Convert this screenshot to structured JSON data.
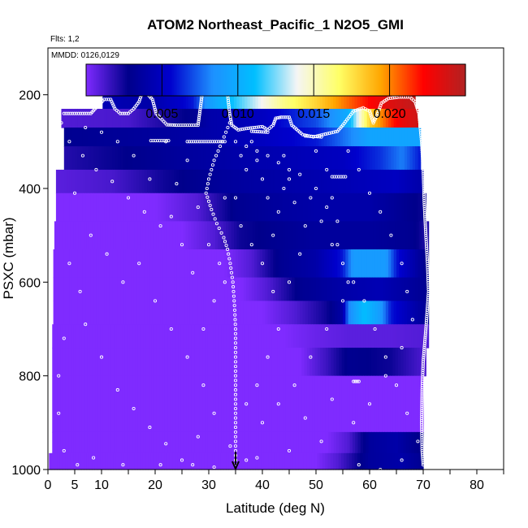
{
  "chart_data": {
    "type": "heatmap",
    "title": "ATOM2 Northeast_Pacific_1 N2O5_GMI",
    "flights_note": "Flts: 1,2",
    "date_note": "MMDD: 0126,0129",
    "xlabel": "Latitude (deg N)",
    "ylabel": "PSXC (mbar)",
    "xlim": [
      0,
      85
    ],
    "ylim": [
      1000,
      100
    ],
    "x_ticks": [
      0,
      5,
      10,
      20,
      30,
      40,
      50,
      60,
      70,
      80
    ],
    "x_minor_ticks": [
      15,
      25,
      35,
      45,
      55,
      65,
      75,
      85
    ],
    "y_ticks": [
      200,
      400,
      600,
      800,
      1000
    ],
    "colorbar": {
      "min": 0,
      "max": 0.025,
      "ticks": [
        "0.005",
        "0.010",
        "0.015",
        "0.020"
      ],
      "tick_values": [
        0.005,
        0.01,
        0.015,
        0.02
      ],
      "colors": [
        "#7f2bff",
        "#00008b",
        "#0000cd",
        "#1e90ff",
        "#00bfff",
        "#f5f5f5",
        "#ffff66",
        "#ffa500",
        "#ff0000",
        "#b22222"
      ]
    },
    "arrow_latitude": 35,
    "grid": false,
    "pressure_bands": [
      {
        "p_top": 170,
        "p_bot": 230,
        "x_start": 10.2,
        "x_end": 68.5,
        "stops": [
          [
            10.2,
            0.0045
          ],
          [
            19,
            0.004
          ],
          [
            27,
            0.006
          ],
          [
            30,
            0.009
          ],
          [
            37,
            0.0125
          ],
          [
            44,
            0.016
          ],
          [
            50,
            0.018
          ],
          [
            56,
            0.0205
          ],
          [
            62,
            0.023
          ],
          [
            68.5,
            0.0245
          ]
        ]
      },
      {
        "p_top": 230,
        "p_bot": 270,
        "x_start": 2.5,
        "x_end": 69,
        "stops": [
          [
            2.5,
            0.001
          ],
          [
            15,
            0.0012
          ],
          [
            27,
            0.003
          ],
          [
            30,
            0.004
          ],
          [
            40,
            0.005
          ],
          [
            50,
            0.007
          ],
          [
            56,
            0.01
          ],
          [
            60,
            0.018
          ],
          [
            64,
            0.0215
          ],
          [
            66,
            0.023
          ],
          [
            69,
            0.024
          ]
        ]
      },
      {
        "p_top": 270,
        "p_bot": 310,
        "x_start": 3,
        "x_end": 69.5,
        "stops": [
          [
            3,
            0.003
          ],
          [
            20,
            0.0035
          ],
          [
            30,
            0.004
          ],
          [
            40,
            0.005
          ],
          [
            50,
            0.006
          ],
          [
            56,
            0.008
          ],
          [
            60,
            0.0095
          ],
          [
            69.5,
            0.0095
          ]
        ]
      },
      {
        "p_top": 310,
        "p_bot": 360,
        "x_start": 3,
        "x_end": 69.5,
        "stops": [
          [
            3,
            0.002
          ],
          [
            15,
            0.0028
          ],
          [
            25,
            0.0035
          ],
          [
            35,
            0.004
          ],
          [
            45,
            0.0045
          ],
          [
            55,
            0.005
          ],
          [
            62,
            0.0065
          ],
          [
            66,
            0.008
          ],
          [
            69.5,
            0.006
          ]
        ]
      },
      {
        "p_top": 360,
        "p_bot": 410,
        "x_start": 1.5,
        "x_end": 70,
        "stops": [
          [
            1.5,
            0.0008
          ],
          [
            12,
            0.0012
          ],
          [
            22,
            0.0025
          ],
          [
            33,
            0.0035
          ],
          [
            45,
            0.004
          ],
          [
            55,
            0.0045
          ],
          [
            65,
            0.005
          ],
          [
            70,
            0.004
          ]
        ]
      },
      {
        "p_top": 410,
        "p_bot": 470,
        "x_start": 1.5,
        "x_end": 70.5,
        "stops": [
          [
            1.5,
            0.0
          ],
          [
            20,
            0.0
          ],
          [
            28,
            0.001
          ],
          [
            35,
            0.003
          ],
          [
            42,
            0.0035
          ],
          [
            50,
            0.004
          ],
          [
            60,
            0.004
          ],
          [
            70.5,
            0.0025
          ]
        ]
      },
      {
        "p_top": 470,
        "p_bot": 530,
        "x_start": 1.2,
        "x_end": 71,
        "stops": [
          [
            1.2,
            0.0
          ],
          [
            25,
            0.0
          ],
          [
            31,
            0.001
          ],
          [
            36,
            0.0025
          ],
          [
            42,
            0.003
          ],
          [
            50,
            0.0035
          ],
          [
            60,
            0.0035
          ],
          [
            68,
            0.003
          ],
          [
            71,
            0.002
          ]
        ]
      },
      {
        "p_top": 530,
        "p_bot": 590,
        "x_start": 1,
        "x_end": 71,
        "stops": [
          [
            1,
            0.0
          ],
          [
            33,
            0.0
          ],
          [
            38,
            0.001
          ],
          [
            43,
            0.003
          ],
          [
            50,
            0.004
          ],
          [
            55,
            0.006
          ],
          [
            57,
            0.009
          ],
          [
            63,
            0.009
          ],
          [
            65,
            0.006
          ],
          [
            71,
            0.0025
          ]
        ]
      },
      {
        "p_top": 590,
        "p_bot": 640,
        "x_start": 1,
        "x_end": 71,
        "stops": [
          [
            1,
            0.0
          ],
          [
            36,
            0.0
          ],
          [
            41,
            0.001
          ],
          [
            47,
            0.003
          ],
          [
            55,
            0.004
          ],
          [
            62,
            0.0045
          ],
          [
            71,
            0.003
          ]
        ]
      },
      {
        "p_top": 640,
        "p_bot": 690,
        "x_start": 1,
        "x_end": 71,
        "stops": [
          [
            1,
            0.0
          ],
          [
            40,
            0.0
          ],
          [
            46,
            0.001
          ],
          [
            52,
            0.0025
          ],
          [
            55,
            0.004
          ],
          [
            56,
            0.008
          ],
          [
            59,
            0.011
          ],
          [
            62,
            0.009
          ],
          [
            64,
            0.006
          ],
          [
            71,
            0.003
          ]
        ]
      },
      {
        "p_top": 690,
        "p_bot": 740,
        "x_start": 0.8,
        "x_end": 71,
        "stops": [
          [
            0.8,
            0.0
          ],
          [
            44,
            0.0
          ],
          [
            50,
            0.0005
          ],
          [
            56,
            0.0008
          ],
          [
            64,
            0.0008
          ],
          [
            71,
            0.001
          ]
        ]
      },
      {
        "p_top": 740,
        "p_bot": 800,
        "x_start": 0.8,
        "x_end": 70.5,
        "stops": [
          [
            0.8,
            0.0
          ],
          [
            47,
            0.0
          ],
          [
            52,
            0.0015
          ],
          [
            56,
            0.003
          ],
          [
            64,
            0.0025
          ],
          [
            70.5,
            0.001
          ]
        ]
      },
      {
        "p_top": 800,
        "p_bot": 920,
        "x_start": 0.8,
        "x_end": 70,
        "stops": [
          [
            0.8,
            0.0
          ],
          [
            70,
            0.0
          ]
        ]
      },
      {
        "p_top": 920,
        "p_bot": 965,
        "x_start": 0.8,
        "x_end": 70,
        "stops": [
          [
            0.8,
            0.0
          ],
          [
            52,
            0.0
          ],
          [
            56,
            0.001
          ],
          [
            60,
            0.0035
          ],
          [
            65,
            0.004
          ],
          [
            70,
            0.0025
          ]
        ]
      },
      {
        "p_top": 965,
        "p_bot": 1000,
        "x_start": 0.2,
        "x_end": 70,
        "stops": [
          [
            0.2,
            0.0
          ],
          [
            50,
            0.0
          ],
          [
            54,
            0.001
          ],
          [
            60,
            0.0035
          ],
          [
            66,
            0.004
          ],
          [
            70,
            0.003
          ]
        ]
      }
    ],
    "flight_track_flat": [
      [
        3,
        240
      ],
      [
        8,
        240
      ],
      [
        9.2,
        225
      ],
      [
        10.5,
        210
      ],
      [
        11.7,
        210
      ],
      [
        12.5,
        230
      ],
      [
        13.5,
        240
      ],
      [
        15,
        240
      ],
      [
        16,
        230
      ],
      [
        17,
        215
      ],
      [
        17.5,
        198
      ],
      [
        18.5,
        198
      ],
      [
        19.5,
        210
      ],
      [
        20.2,
        240
      ],
      [
        21,
        250
      ],
      [
        22.2,
        264
      ],
      [
        24,
        265
      ],
      [
        26,
        265
      ],
      [
        28,
        265
      ],
      [
        28.3,
        240
      ],
      [
        28.7,
        205
      ],
      [
        29,
        188
      ],
      [
        31,
        188
      ],
      [
        33,
        188
      ],
      [
        33.5,
        198
      ],
      [
        33.9,
        240
      ],
      [
        34.3,
        265
      ],
      [
        35.5,
        275
      ],
      [
        37,
        272
      ],
      [
        38.5,
        270
      ],
      [
        40,
        268
      ],
      [
        41,
        275
      ],
      [
        42,
        265
      ],
      [
        42.5,
        250
      ],
      [
        43.5,
        248
      ],
      [
        45,
        248
      ],
      [
        45.5,
        265
      ],
      [
        47.5,
        285
      ],
      [
        49.5,
        290
      ],
      [
        54,
        278
      ],
      [
        55,
        265
      ],
      [
        56,
        250
      ],
      [
        57,
        235
      ],
      [
        58.8,
        228
      ],
      [
        60,
        235
      ],
      [
        60.7,
        260
      ],
      [
        61.5,
        240
      ],
      [
        62.2,
        218
      ],
      [
        63.5,
        208
      ],
      [
        65.5,
        205
      ],
      [
        67.5,
        205
      ],
      [
        68.5,
        215
      ],
      [
        69.2,
        240
      ],
      [
        69.7,
        300
      ],
      [
        70,
        360
      ],
      [
        70.2,
        430
      ],
      [
        70.5,
        500
      ],
      [
        70.8,
        560
      ],
      [
        71,
        620
      ],
      [
        70.5,
        700
      ],
      [
        70,
        770
      ],
      [
        69.8,
        830
      ],
      [
        69.7,
        900
      ],
      [
        69.8,
        960
      ],
      [
        70,
        990
      ]
    ],
    "flight_track_descent": [
      [
        33.9,
        260
      ],
      [
        32.5,
        300
      ],
      [
        31,
        340
      ],
      [
        30,
        380
      ],
      [
        29.5,
        410
      ],
      [
        30.5,
        445
      ],
      [
        31.5,
        475
      ],
      [
        32.8,
        505
      ],
      [
        33.5,
        530
      ],
      [
        34,
        560
      ],
      [
        34.5,
        600
      ],
      [
        34.8,
        650
      ],
      [
        35,
        700
      ],
      [
        35,
        760
      ],
      [
        35,
        820
      ],
      [
        35,
        880
      ],
      [
        35,
        940
      ],
      [
        35,
        990
      ]
    ],
    "flight_track_segments": [
      [
        [
          19.2,
          298
        ],
        [
          22.5,
          298
        ]
      ],
      [
        [
          26,
          300
        ],
        [
          33,
          300
        ]
      ],
      [
        [
          38,
          278
        ],
        [
          41,
          280
        ]
      ],
      [
        [
          48,
          288
        ],
        [
          51,
          290
        ]
      ],
      [
        [
          53,
          375
        ],
        [
          55.5,
          375
        ]
      ],
      [
        [
          57,
          812
        ],
        [
          58,
          812
        ]
      ]
    ],
    "scatter_points": [
      [
        2.5,
        260
      ],
      [
        4,
        300
      ],
      [
        6.5,
        330
      ],
      [
        9,
        360
      ],
      [
        12,
        385
      ],
      [
        15,
        420
      ],
      [
        18,
        450
      ],
      [
        21,
        480
      ],
      [
        24,
        390
      ],
      [
        26,
        340
      ],
      [
        28,
        440
      ],
      [
        5,
        410
      ],
      [
        8,
        500
      ],
      [
        11,
        540
      ],
      [
        14,
        600
      ],
      [
        17,
        560
      ],
      [
        20,
        640
      ],
      [
        23,
        700
      ],
      [
        26,
        760
      ],
      [
        29,
        820
      ],
      [
        7,
        690
      ],
      [
        10,
        760
      ],
      [
        13,
        830
      ],
      [
        16,
        870
      ],
      [
        19,
        910
      ],
      [
        22,
        945
      ],
      [
        25,
        980
      ],
      [
        28,
        930
      ],
      [
        31,
        880
      ],
      [
        34,
        950
      ],
      [
        37,
        980
      ],
      [
        40,
        900
      ],
      [
        43,
        860
      ],
      [
        46,
        820
      ],
      [
        49,
        760
      ],
      [
        52,
        700
      ],
      [
        55,
        640
      ],
      [
        4,
        560
      ],
      [
        6,
        620
      ],
      [
        3,
        720
      ],
      [
        2,
        800
      ],
      [
        2,
        880
      ],
      [
        3,
        960
      ],
      [
        5.5,
        990
      ],
      [
        8.5,
        975
      ],
      [
        14,
        990
      ],
      [
        21,
        990
      ],
      [
        27,
        990
      ],
      [
        31,
        995
      ],
      [
        39,
        975
      ],
      [
        45,
        960
      ],
      [
        51,
        940
      ],
      [
        57,
        900
      ],
      [
        60,
        860
      ],
      [
        63,
        800
      ],
      [
        66,
        740
      ],
      [
        68,
        680
      ],
      [
        67,
        620
      ],
      [
        66,
        560
      ],
      [
        64,
        500
      ],
      [
        62,
        450
      ],
      [
        60,
        410
      ],
      [
        58,
        360
      ],
      [
        56,
        320
      ],
      [
        38,
        300
      ],
      [
        39,
        340
      ],
      [
        40,
        380
      ],
      [
        41,
        420
      ],
      [
        36,
        330
      ],
      [
        37,
        360
      ],
      [
        33,
        420
      ],
      [
        44,
        330
      ],
      [
        45,
        380
      ],
      [
        46,
        430
      ],
      [
        48,
        480
      ],
      [
        47,
        540
      ],
      [
        45,
        600
      ],
      [
        42,
        620
      ],
      [
        43,
        700
      ],
      [
        41,
        760
      ],
      [
        39,
        820
      ],
      [
        37,
        860
      ],
      [
        50,
        320
      ],
      [
        52,
        360
      ],
      [
        53,
        420
      ],
      [
        54,
        470
      ],
      [
        30,
        520
      ],
      [
        32,
        560
      ],
      [
        33,
        600
      ],
      [
        31,
        640
      ],
      [
        29,
        700
      ],
      [
        27,
        580
      ],
      [
        25,
        520
      ],
      [
        23,
        460
      ],
      [
        19,
        380
      ],
      [
        16,
        330
      ],
      [
        13,
        300
      ],
      [
        10,
        280
      ],
      [
        7,
        270
      ],
      [
        22,
        300
      ],
      [
        35,
        420
      ],
      [
        36,
        480
      ],
      [
        38,
        520
      ],
      [
        40,
        560
      ],
      [
        42,
        500
      ],
      [
        43,
        450
      ],
      [
        44,
        400
      ],
      [
        47,
        370
      ],
      [
        49,
        420
      ],
      [
        51,
        470
      ],
      [
        53,
        520
      ],
      [
        55,
        560
      ],
      [
        57,
        600
      ],
      [
        59,
        640
      ],
      [
        61,
        700
      ],
      [
        63,
        760
      ],
      [
        65,
        820
      ],
      [
        67,
        880
      ],
      [
        69,
        940
      ],
      [
        66,
        980
      ],
      [
        62,
        1000
      ],
      [
        58,
        990
      ],
      [
        48,
        890
      ],
      [
        53,
        850
      ],
      [
        35,
        300
      ],
      [
        37,
        310
      ],
      [
        39,
        320
      ],
      [
        41,
        330
      ],
      [
        43,
        345
      ],
      [
        45,
        360
      ],
      [
        50,
        400
      ],
      [
        52,
        440
      ],
      [
        54,
        520
      ],
      [
        56,
        600
      ]
    ]
  }
}
